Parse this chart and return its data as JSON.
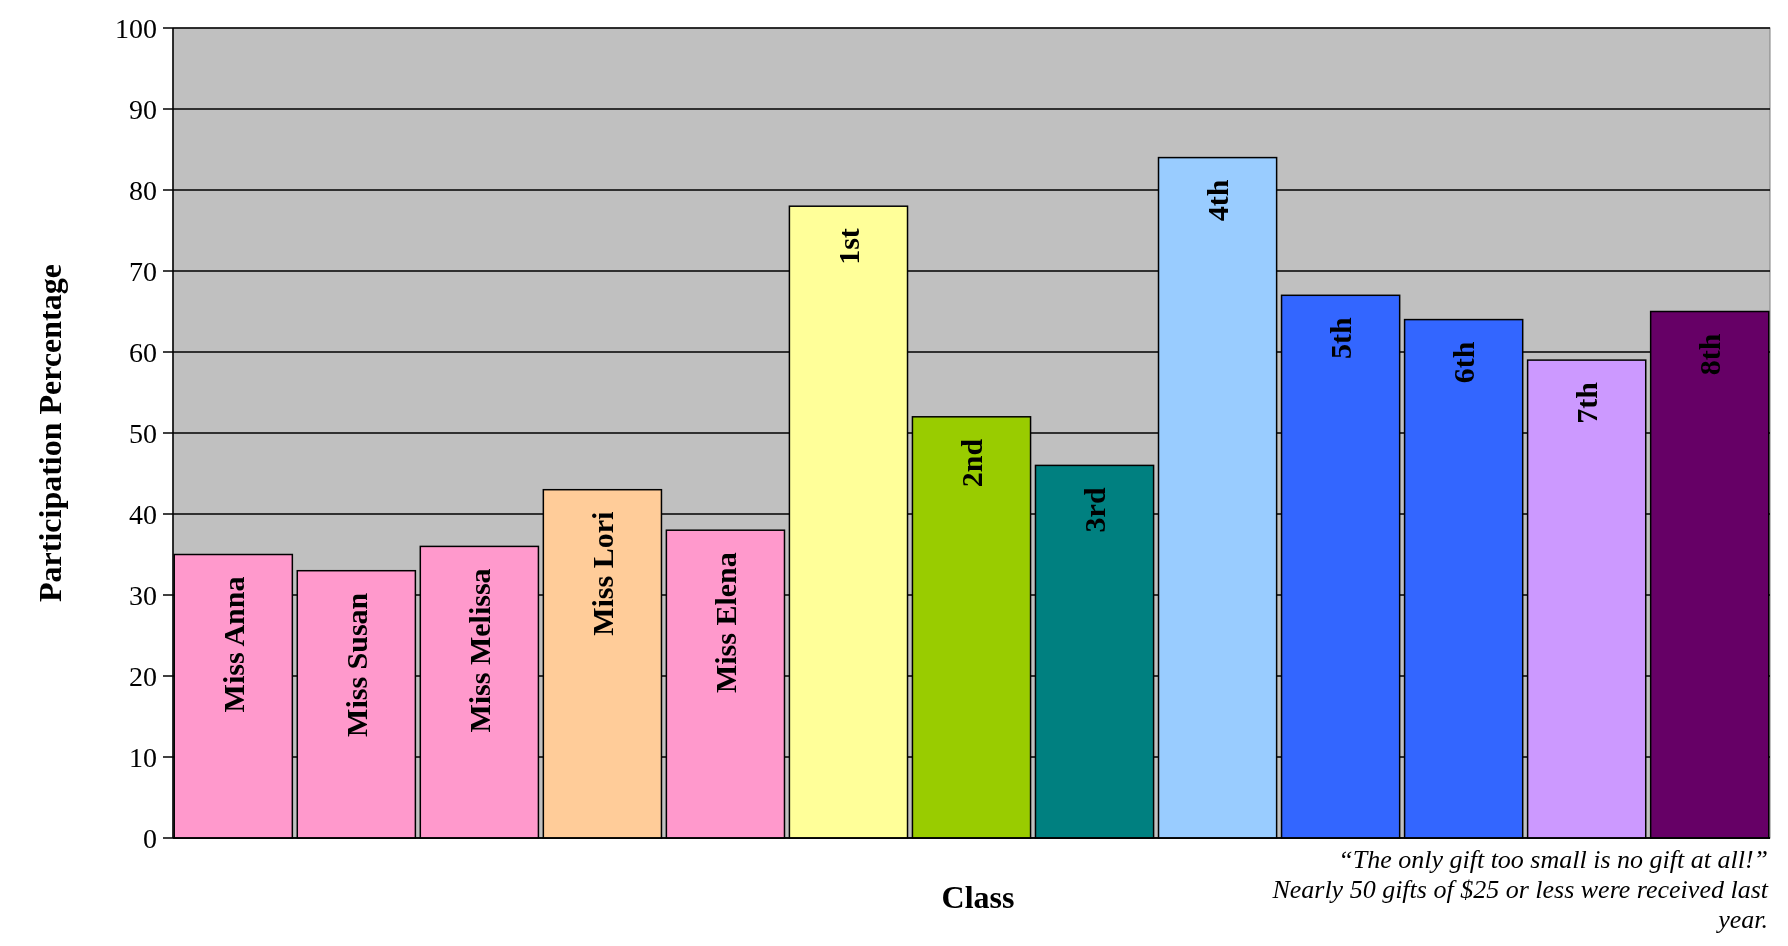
{
  "chart_data": {
    "type": "bar",
    "xlabel": "Class",
    "ylabel": "Participation Percentage",
    "categories": [
      "Miss Anna",
      "Miss Susan",
      "Miss Melissa",
      "Miss Lori",
      "Miss Elena",
      "1st",
      "2nd",
      "3rd",
      "4th",
      "5th",
      "6th",
      "7th",
      "8th"
    ],
    "values": [
      35,
      33,
      36,
      43,
      38,
      78,
      52,
      46,
      84,
      67,
      64,
      59,
      65
    ],
    "colors": [
      "#ff99cc",
      "#ff99cc",
      "#ff99cc",
      "#ffcc99",
      "#ff99cc",
      "#ffff99",
      "#99cc00",
      "#008080",
      "#99ccff",
      "#3366ff",
      "#3366ff",
      "#cc99ff",
      "#660066"
    ],
    "ylim": [
      0,
      100
    ],
    "yticks": [
      0,
      10,
      20,
      30,
      40,
      50,
      60,
      70,
      80,
      90,
      100
    ],
    "grid": "y",
    "annotations": [
      "“The only gift too small is no gift at all!” Nearly 50 gifts of $25 or less were received last year."
    ]
  }
}
